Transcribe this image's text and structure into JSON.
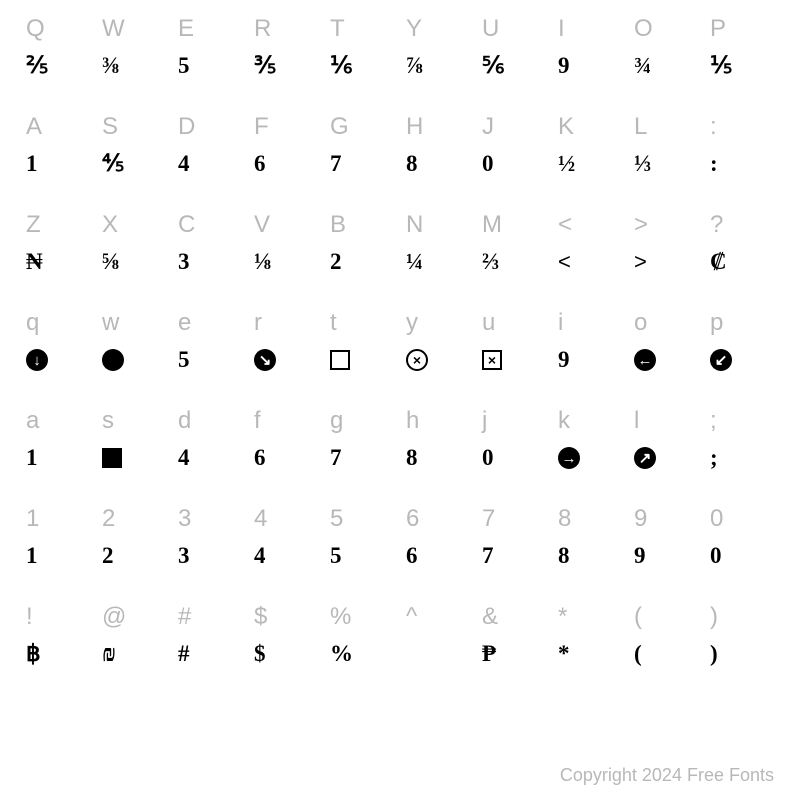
{
  "copyright": "Copyright 2024 Free Fonts",
  "rows": [
    {
      "keys": [
        "Q",
        "W",
        "E",
        "R",
        "T",
        "Y",
        "U",
        "I",
        "O",
        "P"
      ],
      "glyphs": [
        {
          "type": "text",
          "value": "⅖"
        },
        {
          "type": "text",
          "value": "⅜"
        },
        {
          "type": "text",
          "value": "5"
        },
        {
          "type": "text",
          "value": "⅗"
        },
        {
          "type": "text",
          "value": "⅙"
        },
        {
          "type": "text",
          "value": "⅞"
        },
        {
          "type": "text",
          "value": "⅚"
        },
        {
          "type": "text",
          "value": "9"
        },
        {
          "type": "text",
          "value": "¾"
        },
        {
          "type": "text",
          "value": "⅕"
        }
      ]
    },
    {
      "keys": [
        "A",
        "S",
        "D",
        "F",
        "G",
        "H",
        "J",
        "K",
        "L",
        ":"
      ],
      "glyphs": [
        {
          "type": "text",
          "value": "1"
        },
        {
          "type": "text",
          "value": "⅘"
        },
        {
          "type": "text",
          "value": "4"
        },
        {
          "type": "text",
          "value": "6"
        },
        {
          "type": "text",
          "value": "7"
        },
        {
          "type": "text",
          "value": "8"
        },
        {
          "type": "text",
          "value": "0"
        },
        {
          "type": "text",
          "value": "½"
        },
        {
          "type": "text",
          "value": "⅓"
        },
        {
          "type": "text",
          "value": ":"
        }
      ]
    },
    {
      "keys": [
        "Z",
        "X",
        "C",
        "V",
        "B",
        "N",
        "M",
        "<",
        ">",
        "?"
      ],
      "glyphs": [
        {
          "type": "text",
          "value": "₦"
        },
        {
          "type": "text",
          "value": "⅝"
        },
        {
          "type": "text",
          "value": "3"
        },
        {
          "type": "text",
          "value": "⅛"
        },
        {
          "type": "text",
          "value": "2"
        },
        {
          "type": "text",
          "value": "¼"
        },
        {
          "type": "text",
          "value": "⅔"
        },
        {
          "type": "sans",
          "value": "<"
        },
        {
          "type": "sans",
          "value": ">"
        },
        {
          "type": "text",
          "value": "₡"
        }
      ]
    },
    {
      "keys": [
        "q",
        "w",
        "e",
        "r",
        "t",
        "y",
        "u",
        "i",
        "o",
        "p"
      ],
      "glyphs": [
        {
          "type": "arrow",
          "value": "↓"
        },
        {
          "type": "solid-circle"
        },
        {
          "type": "text",
          "value": "5"
        },
        {
          "type": "arrow",
          "value": "↘"
        },
        {
          "type": "outline-square"
        },
        {
          "type": "circle-x"
        },
        {
          "type": "square-x"
        },
        {
          "type": "text",
          "value": "9"
        },
        {
          "type": "arrow",
          "value": "←"
        },
        {
          "type": "arrow",
          "value": "↙"
        }
      ]
    },
    {
      "keys": [
        "a",
        "s",
        "d",
        "f",
        "g",
        "h",
        "j",
        "k",
        "l",
        ";"
      ],
      "glyphs": [
        {
          "type": "text",
          "value": "1"
        },
        {
          "type": "solid-square"
        },
        {
          "type": "text",
          "value": "4"
        },
        {
          "type": "text",
          "value": "6"
        },
        {
          "type": "text",
          "value": "7"
        },
        {
          "type": "text",
          "value": "8"
        },
        {
          "type": "text",
          "value": "0"
        },
        {
          "type": "arrow",
          "value": "→"
        },
        {
          "type": "arrow",
          "value": "↗"
        },
        {
          "type": "text",
          "value": ";"
        }
      ]
    },
    {
      "keys": [
        "1",
        "2",
        "3",
        "4",
        "5",
        "6",
        "7",
        "8",
        "9",
        "0"
      ],
      "glyphs": [
        {
          "type": "text",
          "value": "1"
        },
        {
          "type": "text",
          "value": "2"
        },
        {
          "type": "text",
          "value": "3"
        },
        {
          "type": "text",
          "value": "4"
        },
        {
          "type": "text",
          "value": "5"
        },
        {
          "type": "text",
          "value": "6"
        },
        {
          "type": "text",
          "value": "7"
        },
        {
          "type": "text",
          "value": "8"
        },
        {
          "type": "text",
          "value": "9"
        },
        {
          "type": "text",
          "value": "0"
        }
      ]
    },
    {
      "keys": [
        "!",
        "@",
        "#",
        "$",
        "%",
        "^",
        "&",
        "*",
        "(",
        ")"
      ],
      "glyphs": [
        {
          "type": "text",
          "value": "฿"
        },
        {
          "type": "text",
          "value": "₪"
        },
        {
          "type": "text",
          "value": "#"
        },
        {
          "type": "text",
          "value": "$"
        },
        {
          "type": "text",
          "value": "%"
        },
        {
          "type": "blank"
        },
        {
          "type": "text",
          "value": "₱"
        },
        {
          "type": "text",
          "value": "*"
        },
        {
          "type": "text",
          "value": "("
        },
        {
          "type": "text",
          "value": ")"
        }
      ]
    }
  ]
}
